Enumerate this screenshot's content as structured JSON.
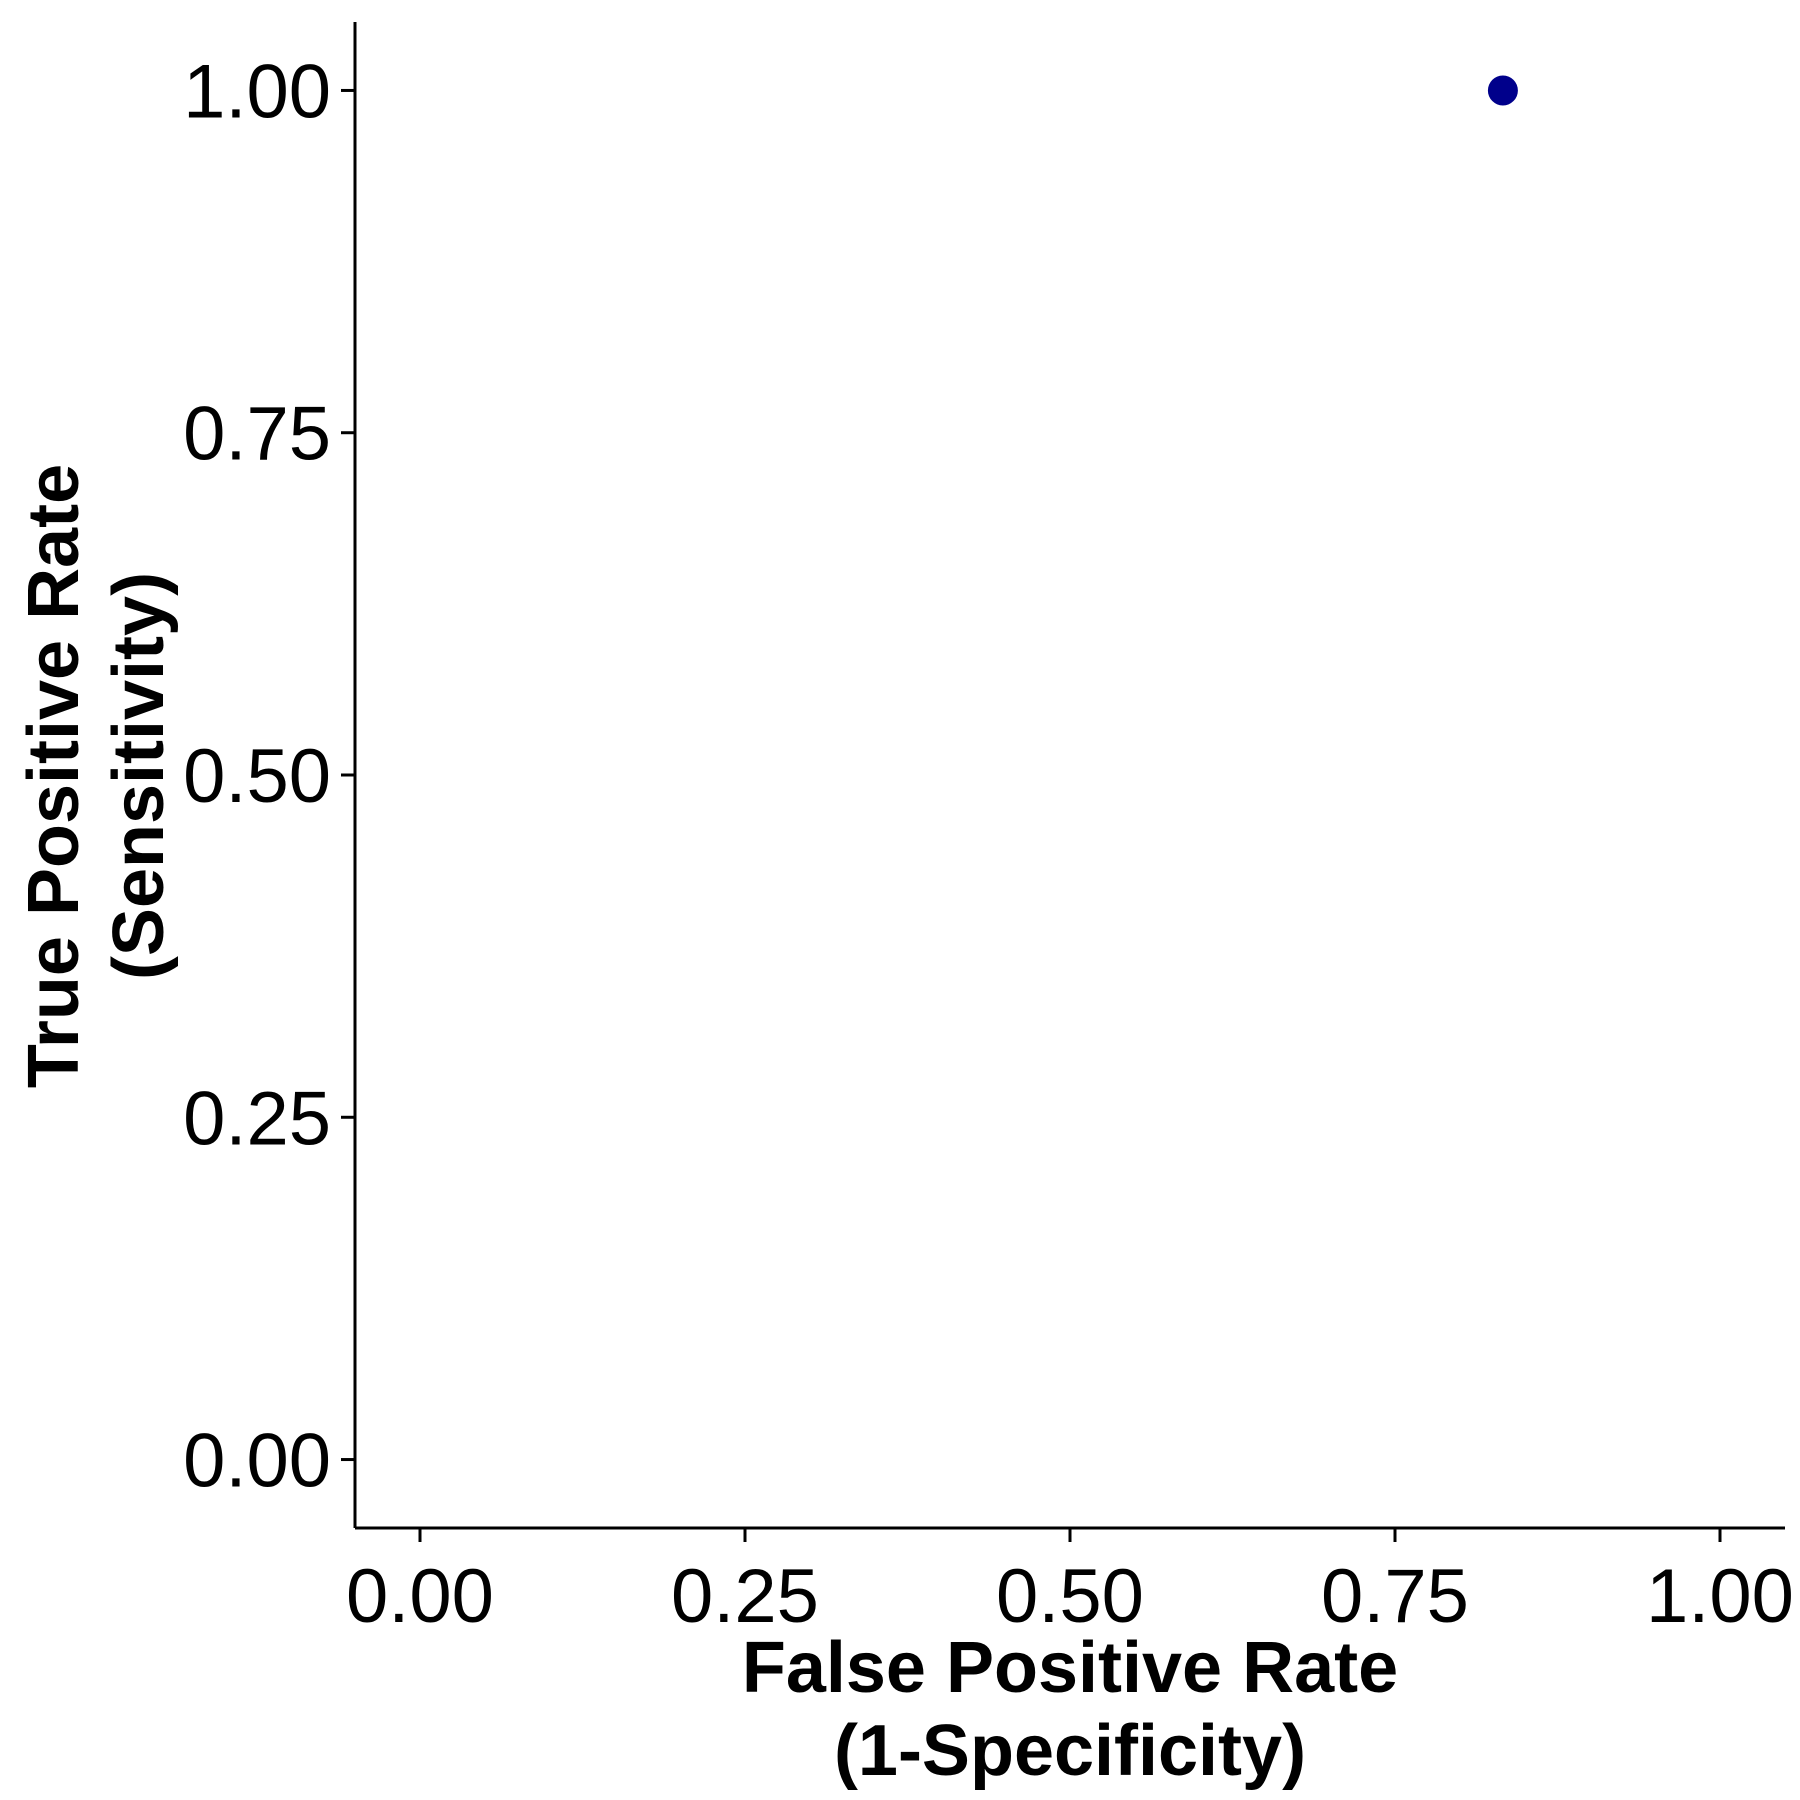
{
  "chart_data": {
    "type": "scatter",
    "title": "",
    "xlabel_lines": [
      "False Positive Rate",
      "(1-Specificity)"
    ],
    "ylabel_lines": [
      "True Positive Rate",
      "(Sensitivity)"
    ],
    "xlim": [
      -0.05,
      1.05
    ],
    "ylim": [
      -0.05,
      1.05
    ],
    "x_ticks": [
      0,
      0.25,
      0.5,
      0.75,
      1
    ],
    "x_tick_labels": [
      "0.00",
      "0.25",
      "0.50",
      "0.75",
      "1.00"
    ],
    "y_ticks": [
      0,
      0.25,
      0.5,
      0.75,
      1
    ],
    "y_tick_labels": [
      "0.00",
      "0.25",
      "0.50",
      "0.75",
      "1.00"
    ],
    "grid": false,
    "series": [
      {
        "color": "#00008B",
        "points": [
          {
            "x": 0.833,
            "y": 1.0
          }
        ]
      }
    ]
  }
}
